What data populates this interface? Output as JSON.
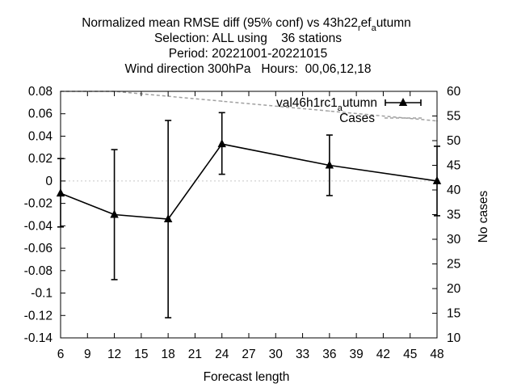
{
  "chart_data": {
    "type": "line",
    "title": {
      "line1": {
        "prefix": "Normalized mean RMSE diff (95% conf) vs 43h22",
        "sub1": "r",
        "mid": "ef",
        "sub2": "a",
        "suffix": "utumn"
      },
      "line2": "Selection: ALL using    36 stations",
      "line3": "Period: 20221001-20221015",
      "line4": "Wind direction 300hPa   Hours:  00,06,12,18"
    },
    "xlabel": "Forecast length",
    "ylabel": "",
    "y2label": "No cases",
    "xlim": [
      6,
      48
    ],
    "ylim": [
      -0.14,
      0.08
    ],
    "y2lim": [
      10,
      60
    ],
    "xticks": [
      6,
      9,
      12,
      15,
      18,
      21,
      24,
      27,
      30,
      33,
      36,
      39,
      42,
      45,
      48
    ],
    "yticks": [
      0.08,
      0.06,
      0.04,
      0.02,
      0,
      -0.02,
      -0.04,
      -0.06,
      -0.08,
      -0.1,
      -0.12,
      -0.14
    ],
    "y2ticks": [
      60,
      55,
      50,
      45,
      40,
      35,
      30,
      25,
      20,
      15,
      10
    ],
    "legend": [
      {
        "prefix": "val46h1rc1",
        "sub": "a",
        "suffix": "utumn"
      },
      {
        "label": "Cases"
      }
    ],
    "series": [
      {
        "name": "val46h1rc1_autumn",
        "axis": "y",
        "color": "#000000",
        "marker": "triangle",
        "x": [
          6,
          12,
          18,
          24,
          36,
          48
        ],
        "values": [
          -0.011,
          -0.03,
          -0.034,
          0.033,
          0.014,
          0.0
        ],
        "err_low": [
          -0.041,
          -0.088,
          -0.122,
          0.006,
          -0.013,
          -0.031
        ],
        "err_high": [
          0.02,
          0.028,
          0.054,
          0.061,
          0.041,
          0.031
        ]
      },
      {
        "name": "Cases",
        "axis": "y2",
        "color": "#a0a0a0",
        "dashed": true,
        "x": [
          6,
          12,
          18,
          24,
          36,
          48
        ],
        "values": [
          60,
          60,
          59,
          58,
          56,
          54
        ]
      }
    ]
  }
}
